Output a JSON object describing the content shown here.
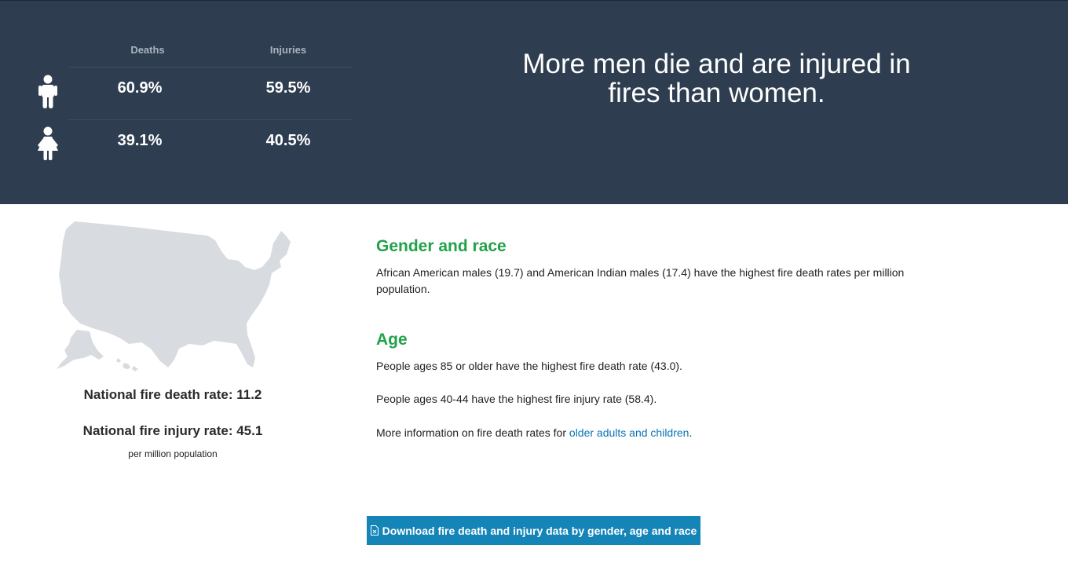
{
  "hero": {
    "headers": {
      "deaths": "Deaths",
      "injuries": "Injuries"
    },
    "rows": [
      {
        "icon": "male-icon",
        "deaths": "60.9%",
        "injuries": "59.5%"
      },
      {
        "icon": "female-icon",
        "deaths": "39.1%",
        "injuries": "40.5%"
      }
    ],
    "headline": "More men die and are injured in fires than women."
  },
  "national": {
    "map_icon": "us-map",
    "death_rate": "National fire death rate: 11.2",
    "injury_rate": "National fire injury rate: 45.1",
    "note": "per million population"
  },
  "gender_race": {
    "title": "Gender and race",
    "text": "African American males (19.7) and American Indian males (17.4) have the highest fire death rates per million population."
  },
  "age": {
    "title": "Age",
    "text1": "People ages 85 or older have the highest fire death rate (43.0).",
    "text2": "People ages 40-44 have the highest fire injury rate (58.4).",
    "more_prefix": "More information on fire death rates for ",
    "more_link": "older adults and children",
    "more_suffix": "."
  },
  "download": {
    "icon": "document-icon",
    "label": "Download fire death and injury data by gender, age and race"
  },
  "colors": {
    "hero_bg": "#2e3e50",
    "accent_green": "#22a24a",
    "link_blue": "#0a74b7",
    "button_blue": "#1585b8",
    "map_gray": "#d8dbe0"
  }
}
